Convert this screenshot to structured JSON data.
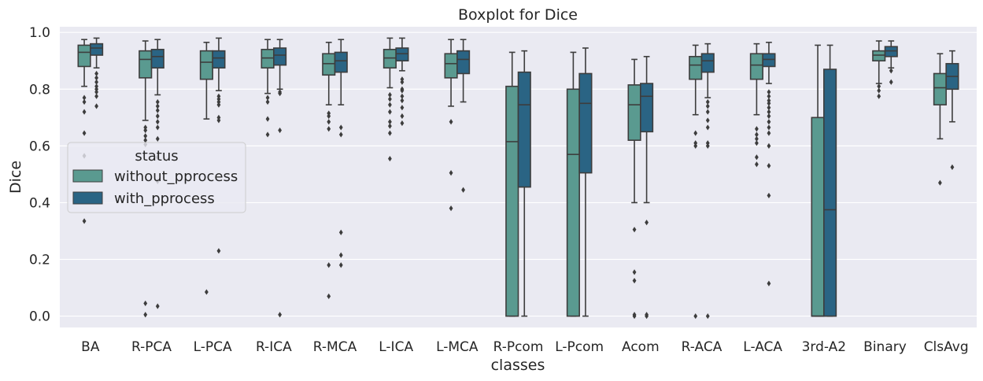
{
  "chart_data": {
    "type": "box",
    "title": "Boxplot for Dice",
    "xlabel": "classes",
    "ylabel": "Dice",
    "ylim": [
      -0.04,
      1.02
    ],
    "yticks": [
      "0.0",
      "0.2",
      "0.4",
      "0.6",
      "0.8",
      "1.0"
    ],
    "grid": true,
    "legend": {
      "title": "status",
      "placement": "center-left"
    },
    "categories": [
      "BA",
      "R-PCA",
      "L-PCA",
      "R-ICA",
      "R-MCA",
      "L-ICA",
      "L-MCA",
      "R-Pcom",
      "L-Pcom",
      "Acom",
      "R-ACA",
      "L-ACA",
      "3rd-A2",
      "Binary",
      "ClsAvg"
    ],
    "series": [
      {
        "name": "without_pprocess",
        "color": "#5a9a90",
        "boxes": [
          {
            "whislo": 0.81,
            "q1": 0.88,
            "med": 0.93,
            "q3": 0.955,
            "whishi": 0.975,
            "fliers": [
              0.77,
              0.755,
              0.72,
              0.645,
              0.565,
              0.335
            ]
          },
          {
            "whislo": 0.69,
            "q1": 0.84,
            "med": 0.905,
            "q3": 0.935,
            "whishi": 0.97,
            "fliers": [
              0.665,
              0.655,
              0.635,
              0.62,
              0.605,
              0.045,
              0.005
            ]
          },
          {
            "whislo": 0.695,
            "q1": 0.835,
            "med": 0.895,
            "q3": 0.935,
            "whishi": 0.965,
            "fliers": [
              0.085
            ]
          },
          {
            "whislo": 0.785,
            "q1": 0.875,
            "med": 0.91,
            "q3": 0.94,
            "whishi": 0.975,
            "fliers": [
              0.77,
              0.755,
              0.695,
              0.64
            ]
          },
          {
            "whislo": 0.745,
            "q1": 0.85,
            "med": 0.89,
            "q3": 0.925,
            "whishi": 0.965,
            "fliers": [
              0.715,
              0.705,
              0.685,
              0.66,
              0.18,
              0.07
            ]
          },
          {
            "whislo": 0.805,
            "q1": 0.875,
            "med": 0.91,
            "q3": 0.94,
            "whishi": 0.98,
            "fliers": [
              0.78,
              0.765,
              0.745,
              0.72,
              0.685,
              0.67,
              0.645,
              0.555
            ]
          },
          {
            "whislo": 0.74,
            "q1": 0.84,
            "med": 0.89,
            "q3": 0.925,
            "whishi": 0.975,
            "fliers": [
              0.685,
              0.505,
              0.38
            ]
          },
          {
            "whislo": 0.0,
            "q1": 0.0,
            "med": 0.615,
            "q3": 0.81,
            "whishi": 0.93,
            "fliers": []
          },
          {
            "whislo": 0.0,
            "q1": 0.0,
            "med": 0.57,
            "q3": 0.8,
            "whishi": 0.93,
            "fliers": []
          },
          {
            "whislo": 0.4,
            "q1": 0.62,
            "med": 0.745,
            "q3": 0.815,
            "whishi": 0.905,
            "fliers": [
              0.305,
              0.155,
              0.125,
              0.0,
              0.005
            ]
          },
          {
            "whislo": 0.71,
            "q1": 0.835,
            "med": 0.885,
            "q3": 0.915,
            "whishi": 0.955,
            "fliers": [
              0.645,
              0.61,
              0.6,
              0.0
            ]
          },
          {
            "whislo": 0.71,
            "q1": 0.835,
            "med": 0.885,
            "q3": 0.925,
            "whishi": 0.96,
            "fliers": [
              0.66,
              0.64,
              0.625,
              0.61,
              0.56,
              0.535
            ]
          },
          {
            "whislo": 0.0,
            "q1": 0.0,
            "med": 0.0,
            "q3": 0.7,
            "whishi": 0.955,
            "fliers": []
          },
          {
            "whislo": 0.82,
            "q1": 0.9,
            "med": 0.92,
            "q3": 0.935,
            "whishi": 0.97,
            "fliers": [
              0.81,
              0.795,
              0.775
            ]
          },
          {
            "whislo": 0.625,
            "q1": 0.745,
            "med": 0.805,
            "q3": 0.855,
            "whishi": 0.925,
            "fliers": [
              0.47
            ]
          }
        ]
      },
      {
        "name": "with_pprocess",
        "color": "#2a6484",
        "boxes": [
          {
            "whislo": 0.875,
            "q1": 0.92,
            "med": 0.945,
            "q3": 0.96,
            "whishi": 0.98,
            "fliers": [
              0.855,
              0.84,
              0.825,
              0.81,
              0.8,
              0.79,
              0.775,
              0.74
            ]
          },
          {
            "whislo": 0.78,
            "q1": 0.875,
            "med": 0.915,
            "q3": 0.94,
            "whishi": 0.975,
            "fliers": [
              0.755,
              0.74,
              0.725,
              0.705,
              0.685,
              0.665,
              0.625,
              0.56,
              0.475,
              0.035
            ]
          },
          {
            "whislo": 0.795,
            "q1": 0.875,
            "med": 0.91,
            "q3": 0.935,
            "whishi": 0.98,
            "fliers": [
              0.775,
              0.765,
              0.755,
              0.745,
              0.7,
              0.69,
              0.23
            ]
          },
          {
            "whislo": 0.8,
            "q1": 0.885,
            "med": 0.92,
            "q3": 0.945,
            "whishi": 0.975,
            "fliers": [
              0.79,
              0.785,
              0.655,
              0.005
            ]
          },
          {
            "whislo": 0.745,
            "q1": 0.86,
            "med": 0.9,
            "q3": 0.93,
            "whishi": 0.975,
            "fliers": [
              0.665,
              0.64,
              0.295,
              0.215,
              0.18
            ]
          },
          {
            "whislo": 0.865,
            "q1": 0.9,
            "med": 0.925,
            "q3": 0.945,
            "whishi": 0.98,
            "fliers": [
              0.835,
              0.825,
              0.8,
              0.795,
              0.775,
              0.76,
              0.735,
              0.705,
              0.68
            ]
          },
          {
            "whislo": 0.755,
            "q1": 0.855,
            "med": 0.905,
            "q3": 0.935,
            "whishi": 0.975,
            "fliers": [
              0.445
            ]
          },
          {
            "whislo": 0.0,
            "q1": 0.455,
            "med": 0.745,
            "q3": 0.86,
            "whishi": 0.935,
            "fliers": []
          },
          {
            "whislo": 0.0,
            "q1": 0.505,
            "med": 0.75,
            "q3": 0.855,
            "whishi": 0.945,
            "fliers": []
          },
          {
            "whislo": 0.4,
            "q1": 0.65,
            "med": 0.775,
            "q3": 0.82,
            "whishi": 0.915,
            "fliers": [
              0.33,
              0.0,
              0.005
            ]
          },
          {
            "whislo": 0.77,
            "q1": 0.86,
            "med": 0.9,
            "q3": 0.925,
            "whishi": 0.96,
            "fliers": [
              0.755,
              0.74,
              0.72,
              0.69,
              0.665,
              0.61,
              0.6,
              0.0
            ]
          },
          {
            "whislo": 0.82,
            "q1": 0.88,
            "med": 0.905,
            "q3": 0.925,
            "whishi": 0.965,
            "fliers": [
              0.79,
              0.775,
              0.76,
              0.75,
              0.735,
              0.72,
              0.705,
              0.685,
              0.665,
              0.645,
              0.6,
              0.53,
              0.425,
              0.115
            ]
          },
          {
            "whislo": 0.0,
            "q1": 0.0,
            "med": 0.375,
            "q3": 0.87,
            "whishi": 0.955,
            "fliers": []
          },
          {
            "whislo": 0.875,
            "q1": 0.915,
            "med": 0.935,
            "q3": 0.95,
            "whishi": 0.97,
            "fliers": [
              0.865,
              0.825
            ]
          },
          {
            "whislo": 0.685,
            "q1": 0.8,
            "med": 0.845,
            "q3": 0.89,
            "whishi": 0.935,
            "fliers": [
              0.525
            ]
          }
        ]
      }
    ]
  }
}
